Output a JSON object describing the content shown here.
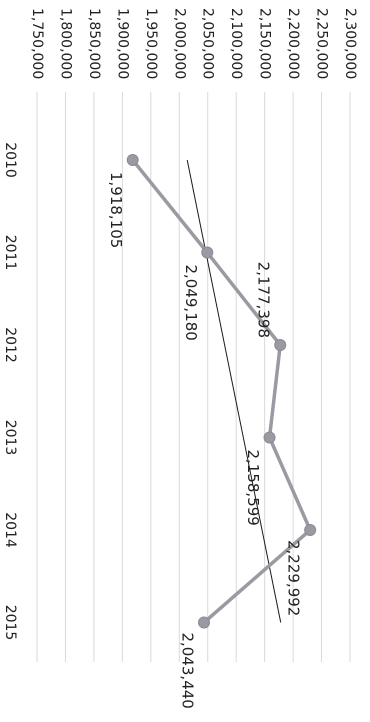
{
  "chart_data": {
    "type": "line",
    "orientation": "rotated-90-clockwise",
    "categories": [
      "2010",
      "2011",
      "2012",
      "2013",
      "2014",
      "2015"
    ],
    "series": [
      {
        "values": [
          1918105,
          2049180,
          2177398,
          2158599,
          2229992,
          2043440
        ],
        "value_labels": [
          "1,918,105",
          "2,049,180",
          "2,177,398",
          "2,158,599",
          "2,229,992",
          "2,043,440"
        ],
        "color": "#9a9aa2"
      }
    ],
    "trendline": {
      "type": "linear",
      "color": "#1a1a1a"
    },
    "value_axis": {
      "min": 1750000,
      "max": 2300000,
      "step": 50000,
      "tick_labels": [
        "1,750,000",
        "1,800,000",
        "1,850,000",
        "1,900,000",
        "1,950,000",
        "2,000,000",
        "2,050,000",
        "2,100,000",
        "2,150,000",
        "2,200,000",
        "2,250,000",
        "2,300,000"
      ]
    },
    "grid": true,
    "legend": "none",
    "title": "",
    "xlabel": "",
    "ylabel": ""
  }
}
